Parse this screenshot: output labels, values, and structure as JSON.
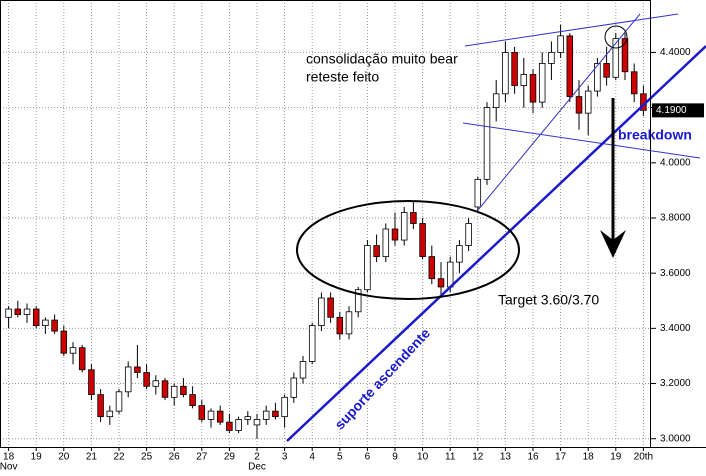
{
  "chart_data": {
    "type": "candlestick",
    "x": [
      "18",
      null,
      null,
      "19",
      null,
      null,
      "20",
      null,
      null,
      "21",
      null,
      null,
      "22",
      null,
      null,
      "25",
      null,
      null,
      "26",
      null,
      null,
      "27",
      null,
      null,
      "29",
      null,
      null,
      "2",
      null,
      null,
      "3",
      null,
      null,
      "4",
      null,
      null,
      "5",
      null,
      null,
      "6",
      null,
      null,
      "9",
      null,
      null,
      "10",
      null,
      null,
      "11",
      null,
      null,
      "12",
      null,
      null,
      "13",
      null,
      null,
      "16",
      null,
      null,
      "17",
      null,
      null,
      "18",
      null,
      null,
      "19",
      null,
      null,
      "20th"
    ],
    "months": [
      "Nov",
      null,
      null,
      null,
      null,
      null,
      null,
      null,
      null,
      null,
      null,
      null,
      null,
      null,
      null,
      null,
      null,
      null,
      null,
      null,
      null,
      null,
      null,
      null,
      null,
      null,
      null,
      "Dec",
      null,
      null,
      null,
      null,
      null,
      null,
      null,
      null,
      null,
      null,
      null,
      null,
      null,
      null,
      null,
      null,
      null,
      null,
      null,
      null,
      null,
      null,
      null,
      null,
      null,
      null,
      null,
      null,
      null,
      null,
      null,
      null,
      null,
      null,
      null,
      null,
      null,
      null,
      null,
      null,
      null,
      null
    ],
    "open": [
      3.44,
      3.47,
      3.45,
      3.47,
      3.41,
      3.43,
      3.39,
      3.31,
      3.33,
      3.25,
      3.16,
      3.08,
      3.1,
      3.17,
      3.26,
      3.24,
      3.19,
      3.21,
      3.15,
      3.19,
      3.16,
      3.12,
      3.07,
      3.1,
      3.06,
      3.03,
      3.07,
      3.05,
      3.07,
      3.1,
      3.08,
      3.15,
      3.22,
      3.28,
      3.41,
      3.51,
      3.44,
      3.38,
      3.46,
      3.54,
      3.7,
      3.66,
      3.76,
      3.72,
      3.82,
      3.78,
      3.66,
      3.58,
      3.55,
      3.64,
      3.7,
      3.84,
      3.94,
      4.2,
      4.25,
      4.4,
      4.28,
      4.32,
      4.22,
      4.36,
      4.4,
      4.46,
      4.24,
      4.18,
      4.26,
      4.36,
      4.31,
      4.45,
      4.33,
      4.25
    ],
    "high": [
      3.48,
      3.5,
      3.49,
      3.48,
      3.44,
      3.45,
      3.41,
      3.35,
      3.34,
      3.27,
      3.18,
      3.12,
      3.18,
      3.28,
      3.34,
      3.27,
      3.23,
      3.22,
      3.2,
      3.22,
      3.19,
      3.14,
      3.11,
      3.12,
      3.09,
      3.08,
      3.1,
      3.09,
      3.12,
      3.13,
      3.16,
      3.24,
      3.3,
      3.42,
      3.53,
      3.53,
      3.46,
      3.48,
      3.55,
      3.72,
      3.74,
      3.78,
      3.82,
      3.84,
      3.86,
      3.8,
      3.7,
      3.64,
      3.66,
      3.72,
      3.8,
      3.95,
      4.22,
      4.3,
      4.44,
      4.42,
      4.38,
      4.34,
      4.4,
      4.44,
      4.5,
      4.47,
      4.3,
      4.28,
      4.38,
      4.42,
      4.47,
      4.47,
      4.36,
      4.28
    ],
    "low": [
      3.4,
      3.44,
      3.42,
      3.4,
      3.38,
      3.38,
      3.3,
      3.27,
      3.24,
      3.14,
      3.06,
      3.05,
      3.09,
      3.15,
      3.22,
      3.18,
      3.16,
      3.14,
      3.12,
      3.15,
      3.11,
      3.06,
      3.04,
      3.05,
      3.02,
      3.02,
      3.05,
      3.0,
      3.05,
      3.07,
      3.04,
      3.13,
      3.2,
      3.27,
      3.39,
      3.42,
      3.36,
      3.36,
      3.44,
      3.53,
      3.64,
      3.64,
      3.7,
      3.7,
      3.76,
      3.65,
      3.56,
      3.52,
      3.53,
      3.6,
      3.68,
      3.82,
      3.92,
      4.15,
      4.22,
      4.25,
      4.2,
      4.18,
      4.2,
      4.3,
      4.38,
      4.22,
      4.12,
      4.1,
      4.24,
      4.28,
      4.3,
      4.3,
      4.22,
      4.17
    ],
    "close": [
      3.47,
      3.45,
      3.47,
      3.41,
      3.43,
      3.39,
      3.31,
      3.33,
      3.25,
      3.16,
      3.08,
      3.1,
      3.17,
      3.26,
      3.24,
      3.19,
      3.21,
      3.15,
      3.19,
      3.16,
      3.12,
      3.07,
      3.1,
      3.06,
      3.03,
      3.07,
      3.08,
      3.07,
      3.1,
      3.08,
      3.15,
      3.22,
      3.28,
      3.41,
      3.51,
      3.44,
      3.38,
      3.46,
      3.54,
      3.7,
      3.66,
      3.76,
      3.72,
      3.82,
      3.78,
      3.66,
      3.58,
      3.55,
      3.64,
      3.7,
      3.78,
      3.94,
      4.2,
      4.25,
      4.4,
      4.28,
      4.32,
      4.22,
      4.36,
      4.4,
      4.46,
      4.24,
      4.18,
      4.26,
      4.36,
      4.31,
      4.45,
      4.33,
      4.25,
      4.19
    ],
    "up_color": "#ffffff",
    "down_color": "#cc0000",
    "ylim": [
      2.97,
      4.59
    ],
    "yticks": [
      {
        "value": 3.0,
        "label": "3.0000"
      },
      {
        "value": 3.2,
        "label": "3.2000"
      },
      {
        "value": 3.4,
        "label": "3.4000"
      },
      {
        "value": 3.6,
        "label": "3.6000"
      },
      {
        "value": 3.8,
        "label": "3.8000"
      },
      {
        "value": 4.0,
        "label": "4.0000"
      },
      {
        "value": 4.2,
        "label": "4.2000"
      },
      {
        "value": 4.4,
        "label": "4.4000"
      }
    ],
    "last_price": {
      "value": 4.19,
      "label": "4.1900"
    },
    "grid": true,
    "annotations": [
      "consolidação muito bear",
      "reteste feito",
      "breakdown",
      "Target 3.60/3.70",
      "suporte ascendente"
    ]
  }
}
